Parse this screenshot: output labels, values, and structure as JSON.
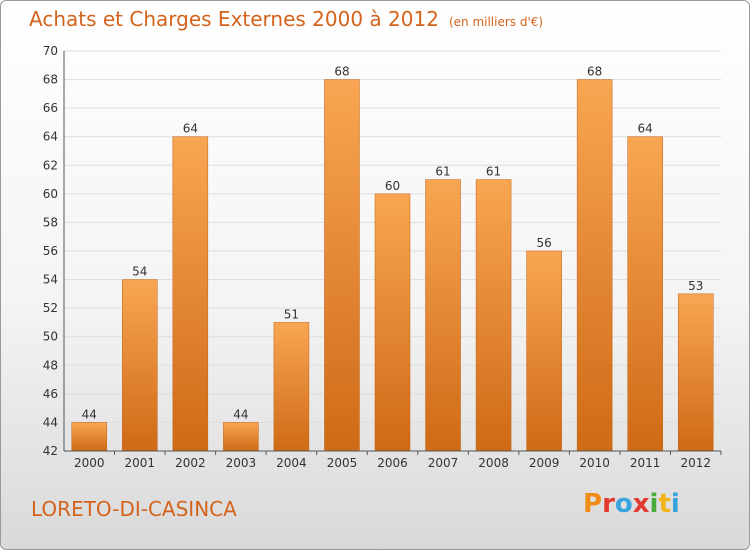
{
  "header": {
    "title": "Achats et Charges Externes 2000 à 2012",
    "unit": "(en milliers d'€)"
  },
  "footer": {
    "commune": "LORETO-DI-CASINCA",
    "logo_letters": [
      "P",
      "r",
      "o",
      "x",
      "i",
      "t",
      "i"
    ],
    "logo_colors": [
      "#f28c18",
      "#e23a2e",
      "#38a4dd",
      "#e23a2e",
      "#4aaa3c",
      "#f2b318",
      "#38a4dd"
    ]
  },
  "colors": {
    "bar_light": "#f8a653",
    "bar_dark": "#cf6a16",
    "grid": "#dddddd",
    "axis": "#555555"
  },
  "chart_data": {
    "type": "bar",
    "title": "Achats et Charges Externes 2000 à 2012",
    "xlabel": "",
    "ylabel": "",
    "categories": [
      "2000",
      "2001",
      "2002",
      "2003",
      "2004",
      "2005",
      "2006",
      "2007",
      "2008",
      "2009",
      "2010",
      "2011",
      "2012"
    ],
    "values": [
      44,
      54,
      64,
      44,
      51,
      68,
      60,
      61,
      61,
      56,
      68,
      64,
      53
    ],
    "ylim": [
      42,
      70
    ],
    "yticks": [
      42,
      44,
      46,
      48,
      50,
      52,
      54,
      56,
      58,
      60,
      62,
      64,
      66,
      68,
      70
    ],
    "grid": true,
    "data_labels": true
  }
}
